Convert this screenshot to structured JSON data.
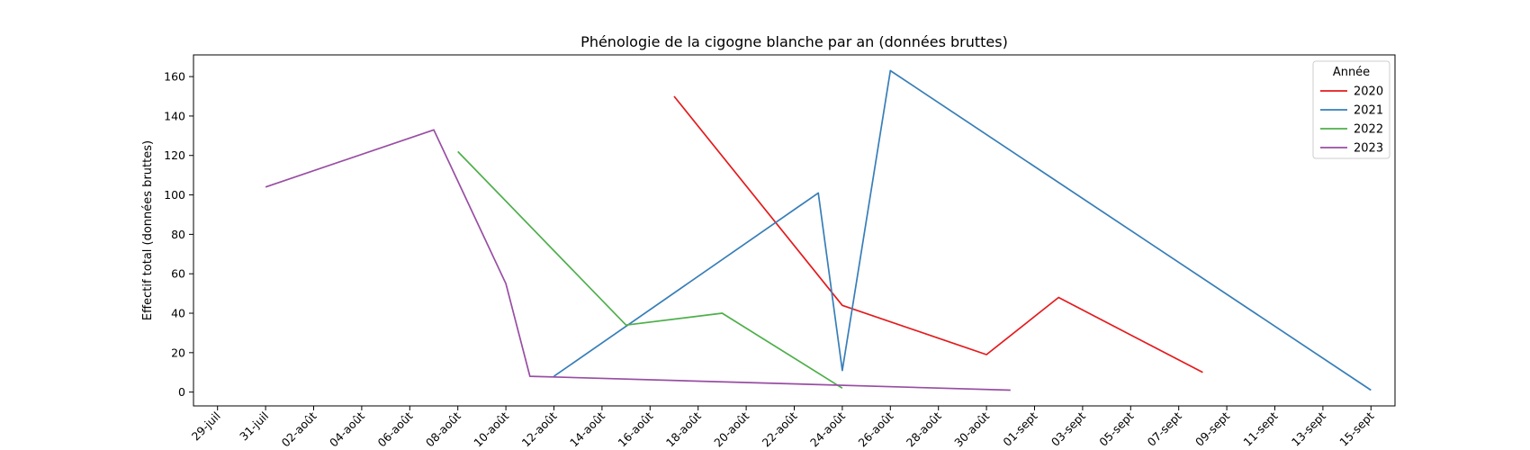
{
  "chart_data": {
    "type": "line",
    "title": "Phénologie de la cigogne blanche par an (données bruttes)",
    "xlabel": "",
    "ylabel": "Effectif total (données bruttes)",
    "ylim": [
      -7,
      171
    ],
    "xlim": [
      "2000-07-28",
      "2000-09-16"
    ],
    "x_ticks": [
      {
        "date": "2000-07-29",
        "label": "29-juil"
      },
      {
        "date": "2000-07-31",
        "label": "31-juil"
      },
      {
        "date": "2000-08-02",
        "label": "02-août"
      },
      {
        "date": "2000-08-04",
        "label": "04-août"
      },
      {
        "date": "2000-08-06",
        "label": "06-août"
      },
      {
        "date": "2000-08-08",
        "label": "08-août"
      },
      {
        "date": "2000-08-10",
        "label": "10-août"
      },
      {
        "date": "2000-08-12",
        "label": "12-août"
      },
      {
        "date": "2000-08-14",
        "label": "14-août"
      },
      {
        "date": "2000-08-16",
        "label": "16-août"
      },
      {
        "date": "2000-08-18",
        "label": "18-août"
      },
      {
        "date": "2000-08-20",
        "label": "20-août"
      },
      {
        "date": "2000-08-22",
        "label": "22-août"
      },
      {
        "date": "2000-08-24",
        "label": "24-août"
      },
      {
        "date": "2000-08-26",
        "label": "26-août"
      },
      {
        "date": "2000-08-28",
        "label": "28-août"
      },
      {
        "date": "2000-08-30",
        "label": "30-août"
      },
      {
        "date": "2000-09-01",
        "label": "01-sept"
      },
      {
        "date": "2000-09-03",
        "label": "03-sept"
      },
      {
        "date": "2000-09-05",
        "label": "05-sept"
      },
      {
        "date": "2000-09-07",
        "label": "07-sept"
      },
      {
        "date": "2000-09-09",
        "label": "09-sept"
      },
      {
        "date": "2000-09-11",
        "label": "11-sept"
      },
      {
        "date": "2000-09-13",
        "label": "13-sept"
      },
      {
        "date": "2000-09-15",
        "label": "15-sept"
      }
    ],
    "y_ticks": [
      0,
      20,
      40,
      60,
      80,
      100,
      120,
      140,
      160
    ],
    "grid": false,
    "legend": {
      "title": "Année",
      "placement": "top-right"
    },
    "series": [
      {
        "name": "2020",
        "color": "#e41a1c",
        "points": [
          {
            "x": "2000-08-17",
            "y": 150
          },
          {
            "x": "2000-08-24",
            "y": 44
          },
          {
            "x": "2000-08-30",
            "y": 19
          },
          {
            "x": "2000-09-02",
            "y": 48
          },
          {
            "x": "2000-09-08",
            "y": 10
          }
        ]
      },
      {
        "name": "2021",
        "color": "#377eb8",
        "points": [
          {
            "x": "2000-08-12",
            "y": 8
          },
          {
            "x": "2000-08-23",
            "y": 101
          },
          {
            "x": "2000-08-24",
            "y": 11
          },
          {
            "x": "2000-08-26",
            "y": 163
          },
          {
            "x": "2000-09-15",
            "y": 1
          }
        ]
      },
      {
        "name": "2022",
        "color": "#4daf4a",
        "points": [
          {
            "x": "2000-08-08",
            "y": 122
          },
          {
            "x": "2000-08-15",
            "y": 34
          },
          {
            "x": "2000-08-19",
            "y": 40
          },
          {
            "x": "2000-08-24",
            "y": 2
          }
        ]
      },
      {
        "name": "2023",
        "color": "#984ea3",
        "points": [
          {
            "x": "2000-07-31",
            "y": 104
          },
          {
            "x": "2000-08-07",
            "y": 133
          },
          {
            "x": "2000-08-10",
            "y": 55
          },
          {
            "x": "2000-08-11",
            "y": 8
          },
          {
            "x": "2000-08-31",
            "y": 1
          }
        ]
      }
    ]
  }
}
